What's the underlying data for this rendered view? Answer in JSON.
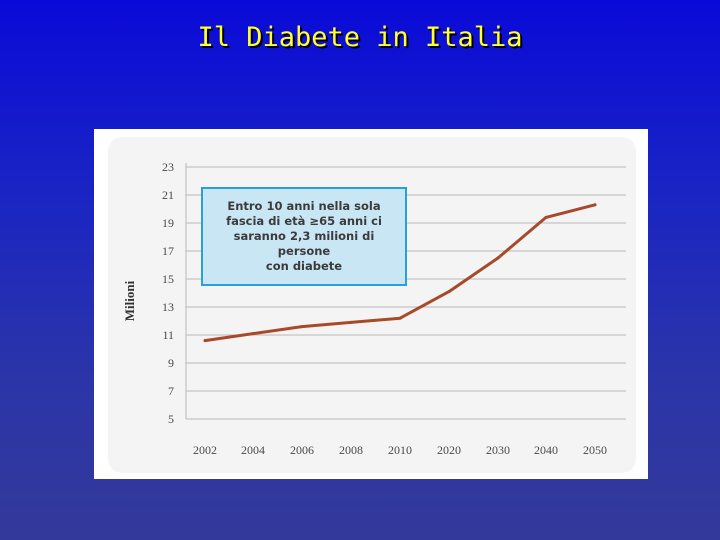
{
  "slide": {
    "title": "Il Diabete in Italia"
  },
  "chart_data": {
    "type": "line",
    "title": "",
    "xlabel": "",
    "ylabel": "Milioni",
    "categories": [
      "2002",
      "2004",
      "2006",
      "2008",
      "2010",
      "2020",
      "2030",
      "2040",
      "2050"
    ],
    "series": [
      {
        "values": [
          10.6,
          11.1,
          11.6,
          11.9,
          12.2,
          14.1,
          16.5,
          19.4,
          20.3
        ]
      }
    ],
    "yticks": [
      5,
      7,
      9,
      11,
      13,
      15,
      17,
      19,
      21,
      23
    ],
    "ylim": [
      5,
      23
    ],
    "grid": true,
    "line_color": "#a8492a",
    "annotation": "Entro 10 anni nella sola\nfascia di età ≥65 anni ci\nsaranno 2,3 milioni di persone\ncon diabete"
  }
}
